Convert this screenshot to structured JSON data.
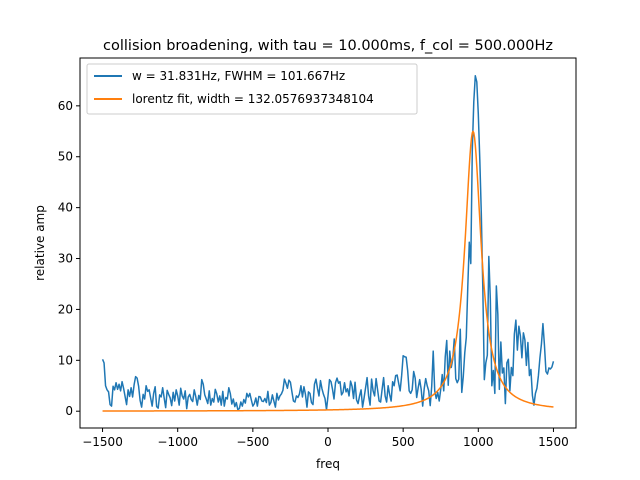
{
  "chart_data": {
    "type": "line",
    "title": "collision broadening, with tau = 10.000ms, f_col = 500.000Hz",
    "xlabel": "freq",
    "ylabel": "relative amp",
    "xlim": [
      -1650,
      1650
    ],
    "ylim": [
      -3.3,
      69.4
    ],
    "x_ticks": [
      -1500,
      -1000,
      -500,
      0,
      500,
      1000,
      1500
    ],
    "x_tick_labels": [
      "−1500",
      "−1000",
      "−500",
      "0",
      "500",
      "1000",
      "1500"
    ],
    "y_ticks": [
      0,
      10,
      20,
      30,
      40,
      50,
      60
    ],
    "y_tick_labels": [
      "0",
      "10",
      "20",
      "30",
      "40",
      "50",
      "60"
    ],
    "grid": false,
    "legend_position": "upper-left",
    "series": [
      {
        "name": "w = 31.831Hz, FWHM = 101.667Hz",
        "color": "#1f77b4",
        "points": [
          [
            -1500,
            10.2
          ],
          [
            -1490,
            9.5
          ],
          [
            -1480,
            5.0
          ],
          [
            -1470,
            4.2
          ],
          [
            -1460,
            3.8
          ],
          [
            -1450,
            1.3
          ],
          [
            -1440,
            1.0
          ],
          [
            -1430,
            4.9
          ],
          [
            -1420,
            4.2
          ],
          [
            -1410,
            5.6
          ],
          [
            -1400,
            4.3
          ],
          [
            -1390,
            5.3
          ],
          [
            -1380,
            4.0
          ],
          [
            -1370,
            5.8
          ],
          [
            -1360,
            4.5
          ],
          [
            -1350,
            2.9
          ],
          [
            -1340,
            1.3
          ],
          [
            -1330,
            4.2
          ],
          [
            -1320,
            2.9
          ],
          [
            -1310,
            4.6
          ],
          [
            -1300,
            2.8
          ],
          [
            -1290,
            5.2
          ],
          [
            -1280,
            6.8
          ],
          [
            -1270,
            6.5
          ],
          [
            -1260,
            4.9
          ],
          [
            -1250,
            2.1
          ],
          [
            -1240,
            0.8
          ],
          [
            -1230,
            3.3
          ],
          [
            -1220,
            2.4
          ],
          [
            -1210,
            5.0
          ],
          [
            -1200,
            3.9
          ],
          [
            -1190,
            4.2
          ],
          [
            -1180,
            2.6
          ],
          [
            -1170,
            1.0
          ],
          [
            -1160,
            3.5
          ],
          [
            -1150,
            4.8
          ],
          [
            -1140,
            0.9
          ],
          [
            -1130,
            0.6
          ],
          [
            -1120,
            3.2
          ],
          [
            -1110,
            2.8
          ],
          [
            -1100,
            4.6
          ],
          [
            -1090,
            2.6
          ],
          [
            -1080,
            0.7
          ],
          [
            -1070,
            4.1
          ],
          [
            -1060,
            3.3
          ],
          [
            -1050,
            2.6
          ],
          [
            -1040,
            1.1
          ],
          [
            -1030,
            3.7
          ],
          [
            -1020,
            2.0
          ],
          [
            -1010,
            4.2
          ],
          [
            -1000,
            3.0
          ],
          [
            -990,
            1.2
          ],
          [
            -980,
            4.5
          ],
          [
            -970,
            3.0
          ],
          [
            -960,
            2.4
          ],
          [
            -950,
            4.0
          ],
          [
            -940,
            0.5
          ],
          [
            -930,
            2.8
          ],
          [
            -920,
            3.3
          ],
          [
            -910,
            2.3
          ],
          [
            -900,
            1.9
          ],
          [
            -890,
            4.2
          ],
          [
            -880,
            2.9
          ],
          [
            -870,
            1.2
          ],
          [
            -860,
            3.1
          ],
          [
            -850,
            2.3
          ],
          [
            -840,
            6.2
          ],
          [
            -830,
            5.3
          ],
          [
            -820,
            3.2
          ],
          [
            -810,
            2.4
          ],
          [
            -800,
            1.5
          ],
          [
            -790,
            4.0
          ],
          [
            -780,
            1.2
          ],
          [
            -770,
            2.5
          ],
          [
            -760,
            1.8
          ],
          [
            -750,
            4.3
          ],
          [
            -740,
            3.4
          ],
          [
            -730,
            1.8
          ],
          [
            -720,
            3.0
          ],
          [
            -710,
            1.2
          ],
          [
            -700,
            3.9
          ],
          [
            -690,
            1.0
          ],
          [
            -680,
            2.7
          ],
          [
            -670,
            2.4
          ],
          [
            -660,
            4.6
          ],
          [
            -650,
            3.5
          ],
          [
            -640,
            1.4
          ],
          [
            -630,
            2.4
          ],
          [
            -620,
            0.9
          ],
          [
            -610,
            1.7
          ],
          [
            -600,
            0.3
          ],
          [
            -590,
            0.5
          ],
          [
            -580,
            1.8
          ],
          [
            -570,
            1.0
          ],
          [
            -560,
            2.3
          ],
          [
            -550,
            1.6
          ],
          [
            -540,
            3.5
          ],
          [
            -530,
            2.8
          ],
          [
            -520,
            3.5
          ],
          [
            -510,
            2.2
          ],
          [
            -500,
            1.0
          ],
          [
            -490,
            1.5
          ],
          [
            -480,
            2.6
          ],
          [
            -470,
            1.0
          ],
          [
            -460,
            2.9
          ],
          [
            -450,
            2.8
          ],
          [
            -440,
            2.0
          ],
          [
            -430,
            1.9
          ],
          [
            -420,
            2.5
          ],
          [
            -410,
            1.7
          ],
          [
            -400,
            3.9
          ],
          [
            -390,
            1.2
          ],
          [
            -380,
            1.7
          ],
          [
            -370,
            3.2
          ],
          [
            -360,
            2.0
          ],
          [
            -350,
            0.8
          ],
          [
            -340,
            3.5
          ],
          [
            -330,
            2.2
          ],
          [
            -320,
            3.0
          ],
          [
            -310,
            3.4
          ],
          [
            -300,
            4.1
          ],
          [
            -290,
            6.3
          ],
          [
            -280,
            5.5
          ],
          [
            -270,
            4.5
          ],
          [
            -260,
            6.1
          ],
          [
            -250,
            5.7
          ],
          [
            -240,
            3.8
          ],
          [
            -230,
            2.0
          ],
          [
            -220,
            1.8
          ],
          [
            -210,
            3.0
          ],
          [
            -200,
            2.7
          ],
          [
            -190,
            3.4
          ],
          [
            -180,
            5.0
          ],
          [
            -170,
            2.8
          ],
          [
            -160,
            4.8
          ],
          [
            -150,
            3.3
          ],
          [
            -140,
            0.8
          ],
          [
            -130,
            3.8
          ],
          [
            -120,
            3.5
          ],
          [
            -110,
            1.7
          ],
          [
            -100,
            1.3
          ],
          [
            -90,
            5.3
          ],
          [
            -80,
            6.3
          ],
          [
            -70,
            4.5
          ],
          [
            -60,
            3.0
          ],
          [
            -50,
            6.0
          ],
          [
            -40,
            4.4
          ],
          [
            -30,
            3.3
          ],
          [
            -20,
            2.5
          ],
          [
            -10,
            0.3
          ],
          [
            0,
            3.0
          ],
          [
            10,
            6.2
          ],
          [
            20,
            5.8
          ],
          [
            30,
            4.3
          ],
          [
            40,
            2.4
          ],
          [
            50,
            5.6
          ],
          [
            60,
            6.5
          ],
          [
            70,
            5.5
          ],
          [
            80,
            5.8
          ],
          [
            90,
            3.2
          ],
          [
            100,
            3.7
          ],
          [
            110,
            5.6
          ],
          [
            120,
            3.8
          ],
          [
            130,
            4.4
          ],
          [
            140,
            3.0
          ],
          [
            150,
            5.9
          ],
          [
            160,
            4.9
          ],
          [
            170,
            2.5
          ],
          [
            180,
            5.7
          ],
          [
            190,
            2.2
          ],
          [
            200,
            1.5
          ],
          [
            210,
            3.0
          ],
          [
            220,
            4.2
          ],
          [
            230,
            0.8
          ],
          [
            240,
            2.6
          ],
          [
            250,
            4.6
          ],
          [
            260,
            6.6
          ],
          [
            270,
            3.0
          ],
          [
            280,
            1.2
          ],
          [
            290,
            6.3
          ],
          [
            300,
            4.0
          ],
          [
            310,
            3.0
          ],
          [
            320,
            6.4
          ],
          [
            330,
            4.2
          ],
          [
            340,
            2.0
          ],
          [
            350,
            1.8
          ],
          [
            360,
            4.3
          ],
          [
            370,
            6.6
          ],
          [
            380,
            3.0
          ],
          [
            390,
            1.8
          ],
          [
            400,
            5.0
          ],
          [
            410,
            3.3
          ],
          [
            420,
            2.0
          ],
          [
            430,
            5.8
          ],
          [
            440,
            5.0
          ],
          [
            450,
            7.0
          ],
          [
            460,
            7.1
          ],
          [
            470,
            5.5
          ],
          [
            480,
            4.0
          ],
          [
            490,
            7.0
          ],
          [
            500,
            10.9
          ],
          [
            510,
            10.7
          ],
          [
            520,
            10.6
          ],
          [
            530,
            8.0
          ],
          [
            540,
            4.0
          ],
          [
            550,
            3.5
          ],
          [
            560,
            4.2
          ],
          [
            570,
            7.8
          ],
          [
            580,
            6.5
          ],
          [
            590,
            2.7
          ],
          [
            600,
            4.6
          ],
          [
            610,
            6.2
          ],
          [
            620,
            4.3
          ],
          [
            630,
            1.0
          ],
          [
            640,
            4.4
          ],
          [
            650,
            6.4
          ],
          [
            660,
            5.0
          ],
          [
            670,
            4.0
          ],
          [
            680,
            1.1
          ],
          [
            690,
            4.9
          ],
          [
            700,
            11.8
          ],
          [
            710,
            4.0
          ],
          [
            720,
            2.5
          ],
          [
            730,
            3.7
          ],
          [
            740,
            2.0
          ],
          [
            750,
            4.3
          ],
          [
            760,
            7.2
          ],
          [
            770,
            4.0
          ],
          [
            780,
            10.7
          ],
          [
            790,
            13.9
          ],
          [
            800,
            5.1
          ],
          [
            810,
            11.8
          ],
          [
            820,
            8.6
          ],
          [
            830,
            10.2
          ],
          [
            840,
            14.2
          ],
          [
            850,
            6.4
          ],
          [
            860,
            5.6
          ],
          [
            870,
            6.3
          ],
          [
            880,
            16.1
          ],
          [
            890,
            3.7
          ],
          [
            900,
            6.8
          ],
          [
            910,
            11.5
          ],
          [
            920,
            14.5
          ],
          [
            930,
            24.4
          ],
          [
            940,
            33.2
          ],
          [
            950,
            29.0
          ],
          [
            960,
            51.3
          ],
          [
            970,
            60.8
          ],
          [
            980,
            65.9
          ],
          [
            990,
            64.7
          ],
          [
            1000,
            58.4
          ],
          [
            1010,
            49.4
          ],
          [
            1020,
            38.8
          ],
          [
            1030,
            24.2
          ],
          [
            1040,
            6.2
          ],
          [
            1050,
            9.5
          ],
          [
            1060,
            11.0
          ],
          [
            1070,
            30.4
          ],
          [
            1080,
            22.0
          ],
          [
            1090,
            5.0
          ],
          [
            1100,
            8.0
          ],
          [
            1110,
            3.5
          ],
          [
            1120,
            24.6
          ],
          [
            1130,
            19.0
          ],
          [
            1140,
            4.3
          ],
          [
            1150,
            13.6
          ],
          [
            1160,
            7.5
          ],
          [
            1170,
            8.5
          ],
          [
            1180,
            1.5
          ],
          [
            1190,
            9.5
          ],
          [
            1200,
            10.2
          ],
          [
            1210,
            4.0
          ],
          [
            1220,
            8.6
          ],
          [
            1230,
            7.0
          ],
          [
            1240,
            15.2
          ],
          [
            1250,
            17.9
          ],
          [
            1260,
            12.0
          ],
          [
            1270,
            16.7
          ],
          [
            1280,
            14.8
          ],
          [
            1290,
            10.5
          ],
          [
            1300,
            15.4
          ],
          [
            1310,
            14.0
          ],
          [
            1320,
            9.0
          ],
          [
            1330,
            13.5
          ],
          [
            1340,
            7.0
          ],
          [
            1350,
            8.2
          ],
          [
            1360,
            3.1
          ],
          [
            1370,
            1.2
          ],
          [
            1380,
            3.5
          ],
          [
            1390,
            4.5
          ],
          [
            1400,
            7.0
          ],
          [
            1410,
            10.5
          ],
          [
            1420,
            13.2
          ],
          [
            1430,
            17.2
          ],
          [
            1440,
            13.0
          ],
          [
            1450,
            7.8
          ],
          [
            1460,
            7.3
          ],
          [
            1470,
            8.5
          ],
          [
            1480,
            8.3
          ],
          [
            1490,
            8.7
          ],
          [
            1500,
            9.8
          ]
        ]
      },
      {
        "name": "lorentz fit, width = 132.0576937348104",
        "color": "#ff7f0e",
        "model": "lorentzian",
        "amplitude": 55.0,
        "center": 965,
        "halfwidth": 66.0,
        "x_range": [
          -1500,
          1500
        ]
      }
    ]
  }
}
